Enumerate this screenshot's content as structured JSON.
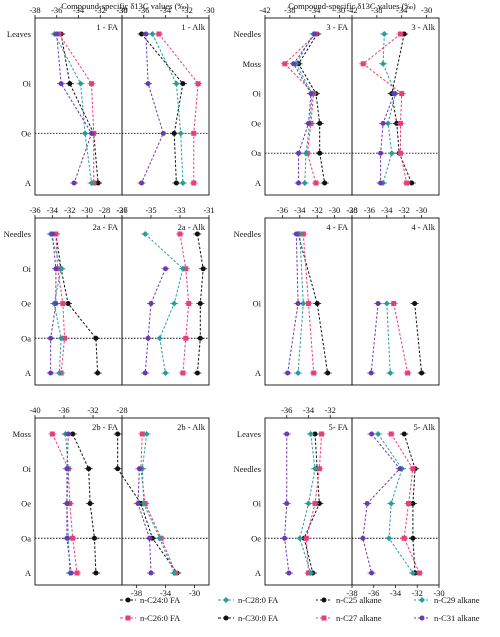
{
  "figure": {
    "top_axis_title": "Compound-specific δ13C values (‰)",
    "legend": [
      {
        "label": "n-C24:0 FA",
        "color": "#111111",
        "dash": "3,2"
      },
      {
        "label": "n-C28:0 FA",
        "color": "#2a9d9a",
        "dash": "3,2"
      },
      {
        "label": "n-C25 alkane",
        "color": "#111111",
        "dash": "2,2"
      },
      {
        "label": "n-C29 alkane",
        "color": "#2a9d9a",
        "dash": "2,2"
      },
      {
        "label": "n-C26:0 FA",
        "color": "#e83e7a",
        "dash": "3,2"
      },
      {
        "label": "n-C30:0 FA",
        "color": "#111111",
        "dash": "3,2"
      },
      {
        "label": "n-C27 alkane",
        "color": "#e83e7a",
        "dash": "2,2"
      },
      {
        "label": "n-C31 alkane",
        "color": "#6a3ab3",
        "dash": "2,2"
      }
    ]
  },
  "colors": {
    "c24": "#111111",
    "c26": "#e83e7a",
    "c28": "#2a9d9a",
    "c30": "#6a3ab3"
  },
  "chart_data": [
    {
      "type": "line",
      "name": "1",
      "panels": [
        "1 - FA",
        "1 - Alk"
      ],
      "categories": [
        "Leaves",
        "Oi",
        "Oe",
        "A"
      ],
      "ref_category": "Oe",
      "xlim": [
        -38,
        -30
      ],
      "xticks": [
        "-38",
        "-36",
        "-34",
        "-32",
        "-30"
      ],
      "tick_position": "top",
      "fa": [
        {
          "key": "c24",
          "values": [
            -35.6,
            -34.8,
            -32.6,
            -32.2
          ]
        },
        {
          "key": "c26",
          "values": [
            -35.8,
            -32.8,
            -32.6,
            -32.6
          ]
        },
        {
          "key": "c28",
          "values": [
            -36.2,
            -33.8,
            -33.4,
            -32.8
          ]
        },
        {
          "key": "c30",
          "values": [
            -36.0,
            -35.6,
            -32.8,
            -34.4
          ]
        }
      ],
      "alk": [
        {
          "key": "c24",
          "values": [
            -36.2,
            -32.4,
            -33.2,
            -33.0
          ]
        },
        {
          "key": "c26",
          "values": [
            -34.6,
            -31.0,
            -31.4,
            -31.4
          ]
        },
        {
          "key": "c28",
          "values": [
            -35.2,
            -33.0,
            -32.6,
            -32.4
          ]
        },
        {
          "key": "c30",
          "values": [
            -35.8,
            -35.6,
            -34.2,
            -36.2
          ]
        }
      ]
    },
    {
      "type": "line",
      "name": "3",
      "panels": [
        "3 - FA",
        "3 - Alk"
      ],
      "categories": [
        "Needles",
        "Moss",
        "Oi",
        "Oe",
        "Oa",
        "A"
      ],
      "ref_category": "Oa",
      "xlim": [
        -42,
        -28
      ],
      "xticks": [
        "-42",
        "-38",
        "-34",
        "-30"
      ],
      "tick_position": "top",
      "fa": [
        {
          "key": "c24",
          "values": [
            -33.6,
            -36.6,
            -33.8,
            -33.2,
            -33.2,
            -32.4
          ]
        },
        {
          "key": "c26",
          "values": [
            -33.8,
            -38.8,
            -34.2,
            -34.6,
            -35.2,
            -33.8
          ]
        },
        {
          "key": "c28",
          "values": [
            -34.2,
            -37.0,
            -34.4,
            -34.8,
            -35.4,
            -35.6
          ]
        },
        {
          "key": "c30",
          "values": [
            -34.0,
            -37.4,
            -34.6,
            -35.0,
            -36.6,
            -36.6
          ]
        }
      ],
      "alk": [
        {
          "key": "c24",
          "values": [
            -33.6,
            null,
            -35.6,
            -34.8,
            -34.4,
            -32.4
          ]
        },
        {
          "key": "c26",
          "values": [
            -34.2,
            -40.2,
            -34.0,
            -34.2,
            -34.2,
            -33.2
          ]
        },
        {
          "key": "c28",
          "values": [
            -36.8,
            -37.0,
            -35.0,
            -36.2,
            -35.6,
            -37.0
          ]
        },
        {
          "key": "c30",
          "values": [
            null,
            null,
            -35.2,
            -37.0,
            -37.4,
            -37.4
          ]
        }
      ]
    },
    {
      "type": "line",
      "name": "2a",
      "panels": [
        "2a - FA",
        "2a - Alk"
      ],
      "categories": [
        "Needles",
        "Oi",
        "Oe",
        "Oa",
        "A"
      ],
      "ref_category": "Oa",
      "xlim_fa": [
        -36,
        -26
      ],
      "xticks_fa": [
        "-36",
        "-34",
        "-32",
        "-30",
        "-28",
        "-26"
      ],
      "xlim_alk": [
        -37,
        -31
      ],
      "xticks_alk": [
        "-37",
        "-35",
        "-33",
        "-31"
      ],
      "fa": [
        {
          "key": "c24",
          "values": [
            -33.6,
            -33.0,
            -32.2,
            -29.0,
            -28.8
          ]
        },
        {
          "key": "c26",
          "values": [
            -33.6,
            -33.4,
            -32.8,
            -32.6,
            -33.0
          ]
        },
        {
          "key": "c28",
          "values": [
            -34.2,
            -33.0,
            -33.8,
            -33.0,
            -33.2
          ]
        },
        {
          "key": "c30",
          "values": [
            -34.0,
            -33.6,
            -33.6,
            -34.2,
            -34.2
          ]
        }
      ],
      "alk": [
        {
          "key": "c24",
          "values": [
            -31.8,
            -31.4,
            -31.6,
            -31.6,
            -31.8
          ]
        },
        {
          "key": "c26",
          "values": [
            -33.0,
            -32.6,
            -32.4,
            -32.6,
            -32.8
          ]
        },
        {
          "key": "c28",
          "values": [
            -35.4,
            -32.8,
            -33.4,
            -34.4,
            -34.0
          ]
        },
        {
          "key": "c30",
          "values": [
            null,
            -34.0,
            -35.0,
            -35.2,
            -35.4
          ]
        }
      ]
    },
    {
      "type": "line",
      "name": "4",
      "panels": [
        "4 - FA",
        "4 - Alk"
      ],
      "categories": [
        "Needles",
        "Oi",
        "A"
      ],
      "ref_category": null,
      "xlim": [
        -38,
        -28
      ],
      "xticks_fa": [
        "-36",
        "-34",
        "-32",
        "-30",
        "-28"
      ],
      "xticks_alk": [
        "-38",
        "-36",
        "-34",
        "-32",
        "-30"
      ],
      "fa": [
        {
          "key": "c24",
          "values": [
            -34.2,
            -32.0,
            -30.8
          ]
        },
        {
          "key": "c26",
          "values": [
            -33.6,
            -33.0,
            -32.4
          ]
        },
        {
          "key": "c28",
          "values": [
            -34.0,
            -33.6,
            -34.2
          ]
        },
        {
          "key": "c30",
          "values": [
            -34.4,
            -34.2,
            -35.4
          ]
        }
      ],
      "alk": [
        {
          "key": "c24",
          "values": [
            null,
            -30.8,
            -30.0
          ]
        },
        {
          "key": "c26",
          "values": [
            null,
            -33.2,
            -31.6
          ]
        },
        {
          "key": "c28",
          "values": [
            null,
            -34.0,
            -33.6
          ]
        },
        {
          "key": "c30",
          "values": [
            null,
            -35.0,
            -35.8
          ]
        }
      ]
    },
    {
      "type": "line",
      "name": "2b",
      "panels": [
        "2b - FA",
        "2b - Alk"
      ],
      "categories": [
        "Moss",
        "Oi",
        "Oe",
        "Oa",
        "A"
      ],
      "ref_category": "Oa",
      "xlim": [
        -40,
        -28
      ],
      "xticks_fa": [
        "-40",
        "-36",
        "-32",
        "-28"
      ],
      "xticks_alk": [
        "-42",
        "-38",
        "-34",
        "-30"
      ],
      "tick_position_alk": "bottom",
      "fa": [
        {
          "key": "c24",
          "values": [
            -34.8,
            -32.6,
            -32.4,
            -31.8,
            -31.6
          ]
        },
        {
          "key": "c26",
          "values": [
            -37.6,
            -35.4,
            -35.2,
            -34.8,
            -34.2
          ]
        },
        {
          "key": "c28",
          "values": [
            -35.8,
            -35.4,
            -35.6,
            -35.4,
            -35.2
          ]
        },
        {
          "key": "c30",
          "values": [
            -35.4,
            -35.6,
            -35.6,
            -35.6,
            -35.0
          ]
        }
      ],
      "alk": [
        {
          "key": "c24",
          "values": [
            -40.6,
            -40.6,
            -37.4,
            -35.8,
            -32.4
          ]
        },
        {
          "key": "c26",
          "values": [
            -37.2,
            -37.4,
            -36.8,
            -34.6,
            -32.6
          ]
        },
        {
          "key": "c28",
          "values": [
            -36.6,
            -37.2,
            -37.0,
            -34.8,
            -32.8
          ]
        },
        {
          "key": "c30",
          "values": [
            null,
            -37.6,
            -37.8,
            -36.2,
            -36.0
          ]
        }
      ]
    },
    {
      "type": "line",
      "name": "5",
      "panels": [
        "5- FA",
        "5- Alk"
      ],
      "categories": [
        "Leaves",
        "Needles",
        "Oi",
        "Oe",
        "A"
      ],
      "ref_category": "Oe",
      "xlim": [
        -38,
        -30
      ],
      "xticks_fa": [
        "-36",
        "-34",
        "-32"
      ],
      "xticks_alk": [
        "-38",
        "-36",
        "-34",
        "-32",
        "-30"
      ],
      "tick_position_alk": "bottom",
      "fa": [
        {
          "key": "c24",
          "values": [
            -33.4,
            -33.2,
            -33.0,
            -34.4,
            -33.6
          ]
        },
        {
          "key": "c26",
          "values": [
            -32.8,
            -33.0,
            -33.4,
            -34.2,
            -34.0
          ]
        },
        {
          "key": "c28",
          "values": [
            -33.8,
            -33.4,
            -34.0,
            -34.8,
            -33.8
          ]
        },
        {
          "key": "c30",
          "values": [
            -36.0,
            null,
            -36.0,
            -36.2,
            -35.8
          ]
        }
      ],
      "alk": [
        {
          "key": "c24",
          "values": [
            -33.2,
            -32.2,
            -32.4,
            -32.4,
            -32.2
          ]
        },
        {
          "key": "c26",
          "values": [
            -34.4,
            -32.4,
            -32.8,
            -33.2,
            -31.8
          ]
        },
        {
          "key": "c28",
          "values": [
            -35.6,
            -33.4,
            -34.4,
            -34.6,
            -32.4
          ]
        },
        {
          "key": "c30",
          "values": [
            -36.2,
            -33.6,
            -36.6,
            -37.0,
            -36.2
          ]
        }
      ]
    }
  ]
}
